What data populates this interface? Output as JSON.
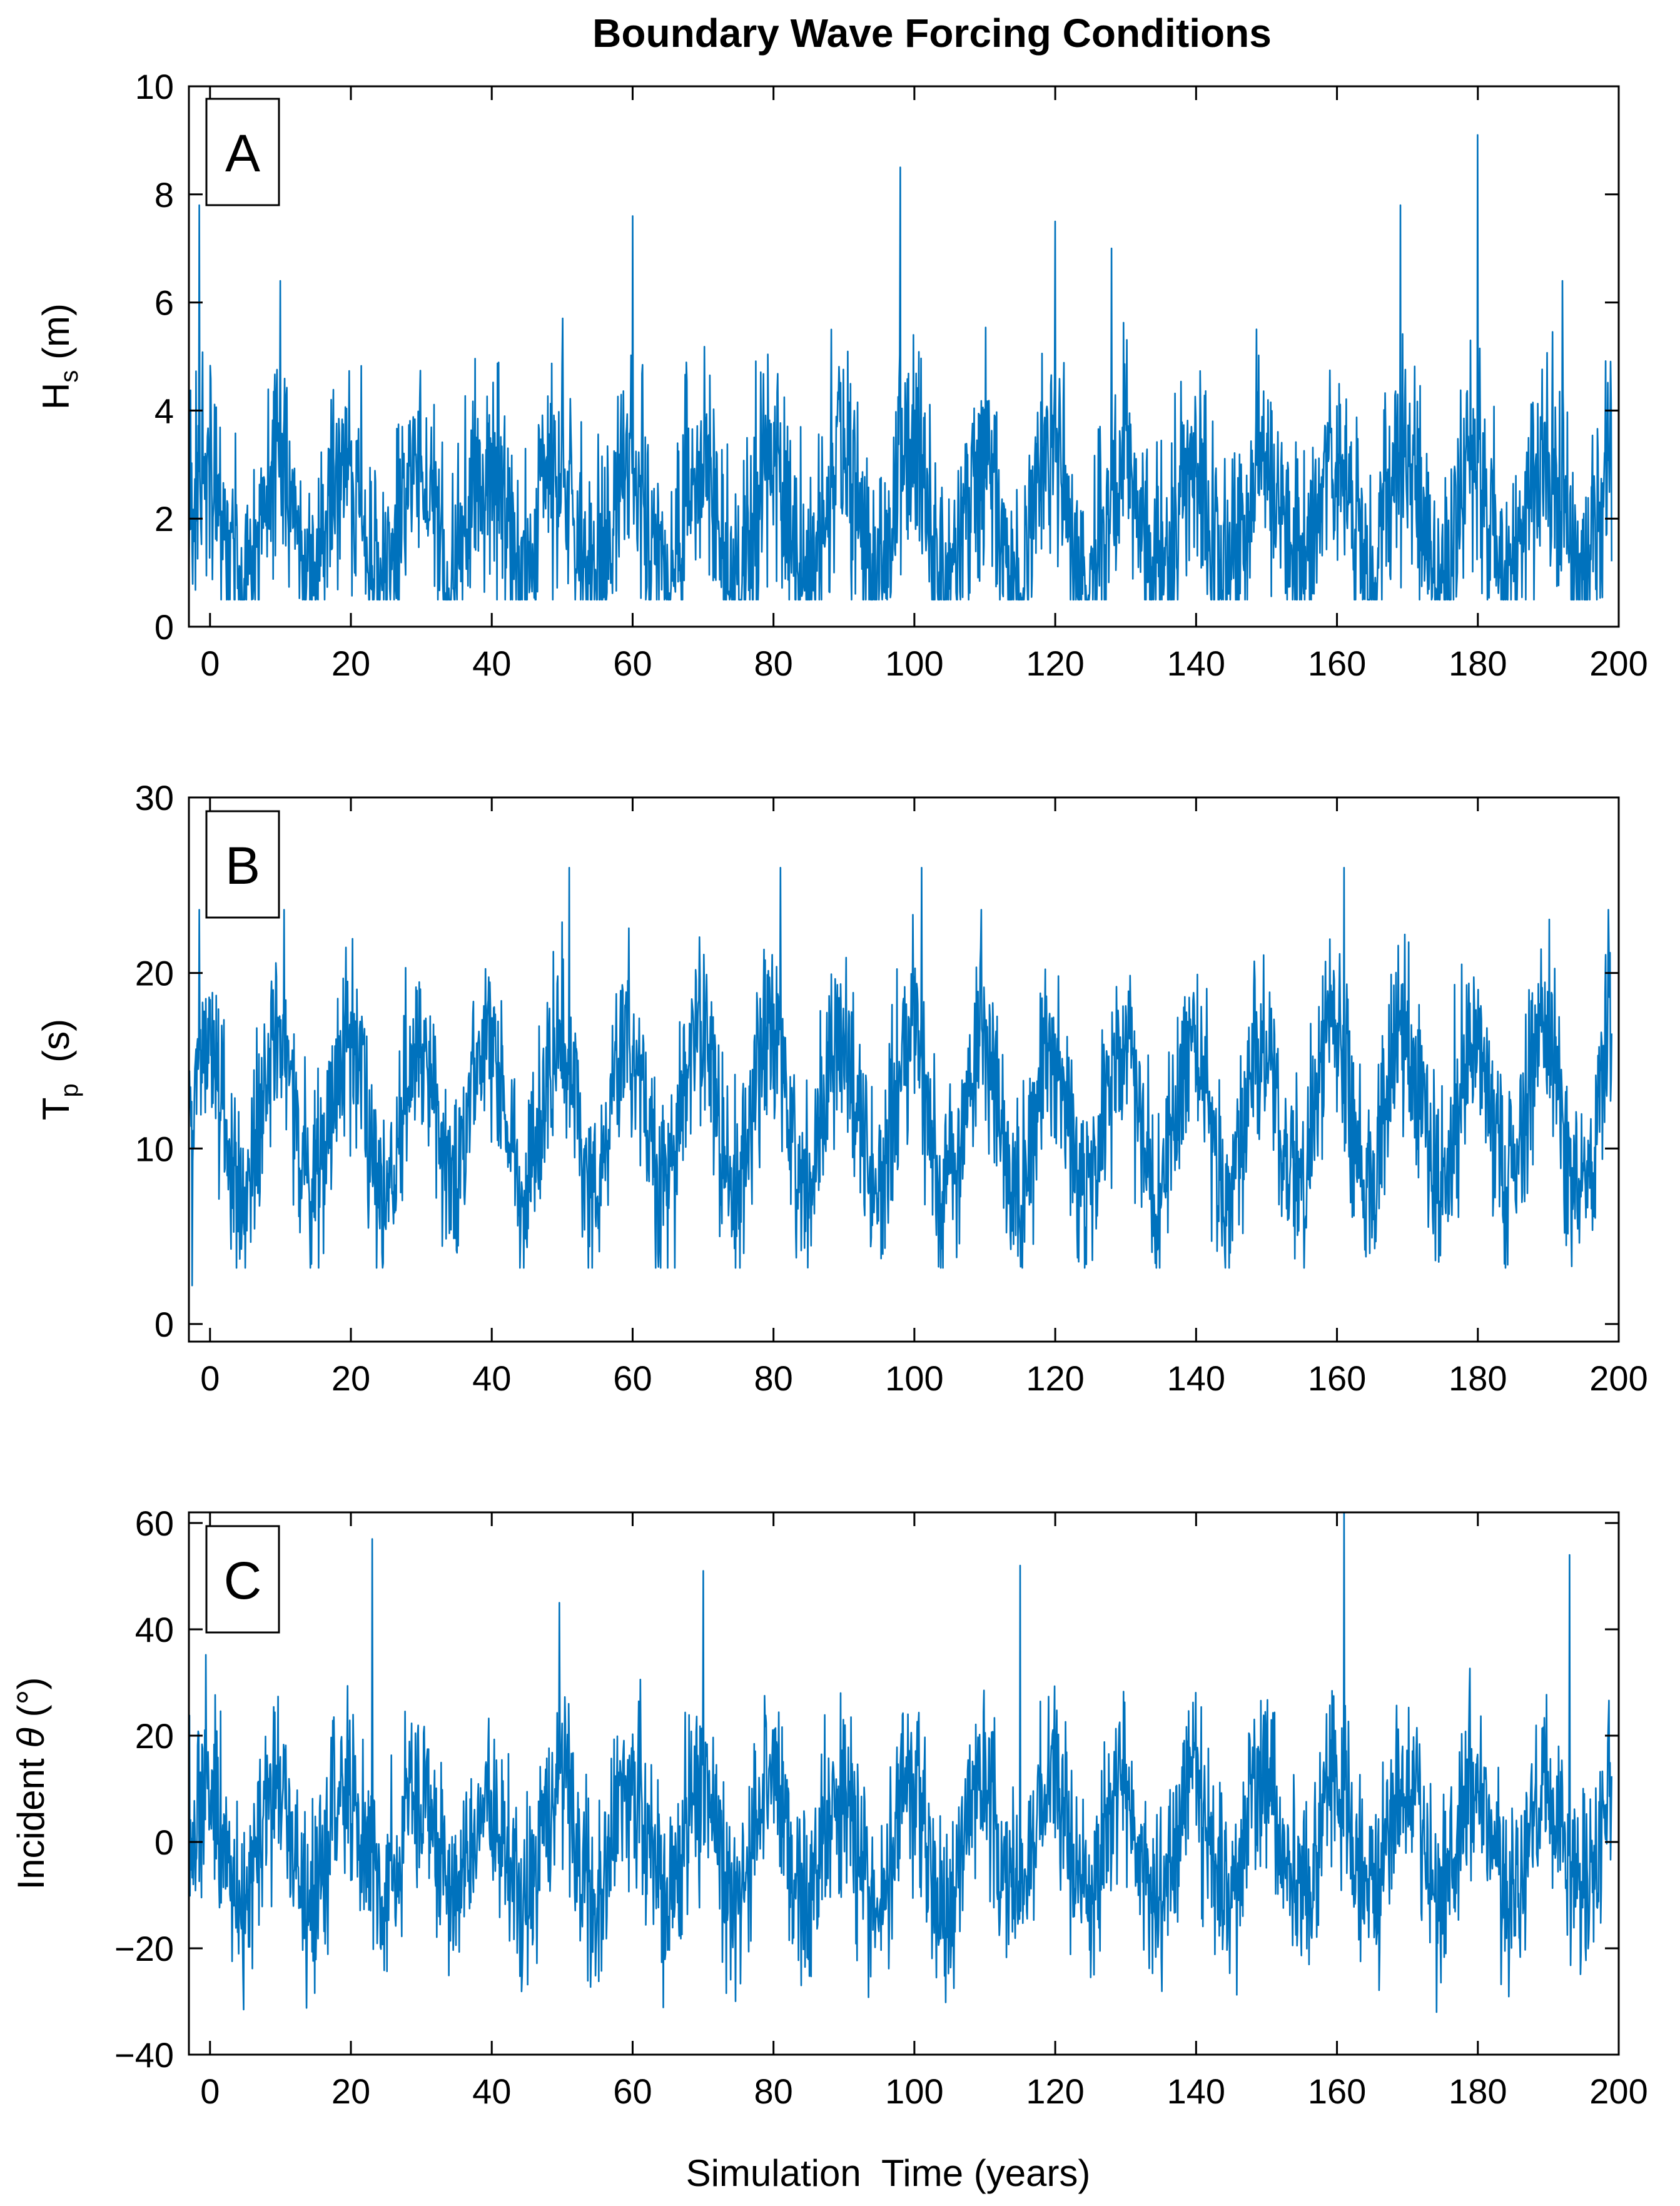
{
  "figure_title": "Boundary Wave Forcing Conditions",
  "x_axis_label": "Simulation  Time (years)",
  "series_color": "#0072bd",
  "chart_data": [
    {
      "type": "line",
      "panel_label": "A",
      "ylabel_main": "H",
      "ylabel_sub": "s",
      "ylabel_unit": " (m)",
      "xlim": [
        -3,
        200
      ],
      "ylim": [
        0,
        10
      ],
      "xticks": [
        0,
        20,
        40,
        60,
        80,
        100,
        120,
        140,
        160,
        180,
        200
      ],
      "xtick_labels": [
        "0",
        "20",
        "40",
        "60",
        "80",
        "100",
        "120",
        "140",
        "160",
        "180",
        "200"
      ],
      "yticks": [
        0,
        2,
        4,
        6,
        8,
        10
      ],
      "ytick_labels": [
        "0",
        "2",
        "4",
        "6",
        "8",
        "10"
      ],
      "series": [
        {
          "name": "Hs",
          "x_start": -3,
          "x_end": 199,
          "season_period": 10,
          "baseline": 2.0,
          "amplitude": 1.1,
          "noise": 1.3,
          "floor": 0.5,
          "ceiling": 9.5,
          "peaks": [
            {
              "x": -1.5,
              "y": 7.8
            },
            {
              "x": 10,
              "y": 6.4
            },
            {
              "x": 60,
              "y": 7.6
            },
            {
              "x": 98,
              "y": 8.5
            },
            {
              "x": 120,
              "y": 7.5
            },
            {
              "x": 128,
              "y": 7.0
            },
            {
              "x": 169,
              "y": 7.8
            },
            {
              "x": 180,
              "y": 9.1
            },
            {
              "x": 192,
              "y": 6.4
            }
          ]
        }
      ]
    },
    {
      "type": "line",
      "panel_label": "B",
      "ylabel_main": "T",
      "ylabel_sub": "p",
      "ylabel_unit": "  (s)",
      "xlim": [
        -3,
        200
      ],
      "ylim": [
        -1,
        30
      ],
      "xticks": [
        0,
        20,
        40,
        60,
        80,
        100,
        120,
        140,
        160,
        180,
        200
      ],
      "xtick_labels": [
        "0",
        "20",
        "40",
        "60",
        "80",
        "100",
        "120",
        "140",
        "160",
        "180",
        "200"
      ],
      "yticks": [
        0,
        10,
        20,
        30
      ],
      "ytick_labels": [
        "0",
        "10",
        "20",
        "30"
      ],
      "series": [
        {
          "name": "Tp",
          "x_start": -3,
          "x_end": 199,
          "season_period": 10,
          "baseline": 12.0,
          "amplitude": 4.2,
          "noise": 3.3,
          "floor": 3.2,
          "ceiling": 23.6,
          "peaks": [
            {
              "x": -2.5,
              "y": 2.2
            },
            {
              "x": -1.5,
              "y": 23.6
            },
            {
              "x": 10.5,
              "y": 23.6
            },
            {
              "x": 51,
              "y": 26.0
            },
            {
              "x": 81,
              "y": 26.0
            },
            {
              "x": 101,
              "y": 26.0
            },
            {
              "x": 161,
              "y": 26.0
            },
            {
              "x": 198.5,
              "y": 23.6
            }
          ]
        }
      ]
    },
    {
      "type": "line",
      "panel_label": "C",
      "ylabel_main": "Incident ",
      "ylabel_theta": "θ",
      "ylabel_unit": " (°)",
      "xlim": [
        -3,
        200
      ],
      "ylim": [
        -40,
        62
      ],
      "xticks": [
        0,
        20,
        40,
        60,
        80,
        100,
        120,
        140,
        160,
        180,
        200
      ],
      "xtick_labels": [
        "0",
        "20",
        "40",
        "60",
        "80",
        "100",
        "120",
        "140",
        "160",
        "180",
        "200"
      ],
      "yticks": [
        -40,
        -20,
        0,
        20,
        40,
        60
      ],
      "ytick_labels": [
        "−40",
        "−20",
        "0",
        "20",
        "40",
        "60"
      ],
      "series": [
        {
          "name": "Incident angle",
          "x_start": -3,
          "x_end": 199,
          "season_period": 10,
          "baseline": 0.0,
          "amplitude": 11.0,
          "noise": 11.0,
          "floor": -32.0,
          "ceiling": 45.0,
          "peaks": [
            {
              "x": 23,
              "y": 57.0
            },
            {
              "x": 70,
              "y": 51.0
            },
            {
              "x": 115,
              "y": 52.0
            },
            {
              "x": 161,
              "y": 62.0
            },
            {
              "x": 193,
              "y": 54.0
            }
          ]
        }
      ]
    }
  ]
}
